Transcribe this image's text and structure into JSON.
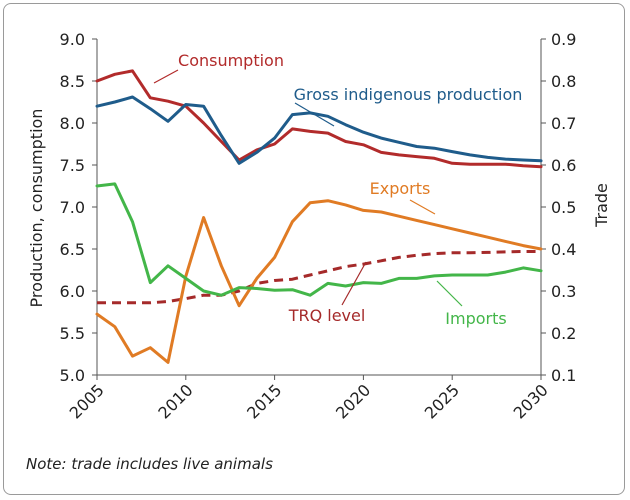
{
  "chart_data": {
    "type": "line",
    "x": [
      2005,
      2006,
      2007,
      2008,
      2009,
      2010,
      2011,
      2012,
      2013,
      2014,
      2015,
      2016,
      2017,
      2018,
      2019,
      2020,
      2021,
      2022,
      2023,
      2024,
      2025,
      2026,
      2027,
      2028,
      2029,
      2030
    ],
    "xticks": [
      "2005",
      "2010",
      "2015",
      "2020",
      "2025",
      "2030"
    ],
    "xlim": [
      2005,
      2030
    ],
    "ylabel_left": "Production, consumption",
    "ylabel_right": "Trade",
    "ylim_left": [
      5.0,
      9.0
    ],
    "ylim_right": [
      0.1,
      0.9
    ],
    "yticks_left": [
      "5.0",
      "5.5",
      "6.0",
      "6.5",
      "7.0",
      "7.5",
      "8.0",
      "8.5",
      "9.0"
    ],
    "yticks_right": [
      "0.1",
      "0.2",
      "0.3",
      "0.4",
      "0.5",
      "0.6",
      "0.7",
      "0.8",
      "0.9"
    ],
    "grid": false,
    "series": [
      {
        "name": "Consumption",
        "axis": "left",
        "color": "#b22b2b",
        "dash": false,
        "values": [
          8.5,
          8.58,
          8.62,
          8.3,
          8.26,
          8.2,
          8.0,
          7.78,
          7.56,
          7.68,
          7.75,
          7.93,
          7.9,
          7.88,
          7.78,
          7.74,
          7.65,
          7.62,
          7.6,
          7.58,
          7.52,
          7.51,
          7.51,
          7.51,
          7.49,
          7.48
        ]
      },
      {
        "name": "Gross  indigenous production",
        "axis": "left",
        "color": "#1f5c8b",
        "dash": false,
        "values": [
          8.2,
          8.25,
          8.31,
          8.17,
          8.02,
          8.22,
          8.2,
          7.85,
          7.52,
          7.65,
          7.82,
          8.1,
          8.12,
          8.08,
          7.98,
          7.89,
          7.82,
          7.77,
          7.72,
          7.7,
          7.66,
          7.62,
          7.59,
          7.57,
          7.56,
          7.55
        ]
      },
      {
        "name": "Exports",
        "axis": "right",
        "color": "#e07b24",
        "dash": false,
        "values": [
          0.245,
          0.215,
          0.145,
          0.165,
          0.13,
          0.335,
          0.475,
          0.36,
          0.265,
          0.33,
          0.38,
          0.465,
          0.51,
          0.515,
          0.505,
          0.492,
          0.488,
          0.478,
          0.468,
          0.458,
          0.448,
          0.438,
          0.428,
          0.418,
          0.408,
          0.4
        ]
      },
      {
        "name": "Imports",
        "axis": "right",
        "color": "#43b649",
        "dash": false,
        "values": [
          0.55,
          0.555,
          0.465,
          0.32,
          0.36,
          0.33,
          0.3,
          0.29,
          0.308,
          0.306,
          0.302,
          0.303,
          0.29,
          0.318,
          0.312,
          0.32,
          0.318,
          0.33,
          0.33,
          0.336,
          0.338,
          0.338,
          0.338,
          0.345,
          0.355,
          0.348
        ]
      },
      {
        "name": "TRQ level",
        "axis": "right",
        "color": "#a52a2a",
        "dash": true,
        "values": [
          0.272,
          0.272,
          0.272,
          0.272,
          0.275,
          0.282,
          0.29,
          0.29,
          0.3,
          0.318,
          0.325,
          0.328,
          0.338,
          0.348,
          0.358,
          0.364,
          0.372,
          0.38,
          0.385,
          0.389,
          0.391,
          0.391,
          0.392,
          0.393,
          0.394,
          0.394
        ]
      }
    ],
    "annotations": {
      "note": "Note: trade includes live animals"
    }
  }
}
